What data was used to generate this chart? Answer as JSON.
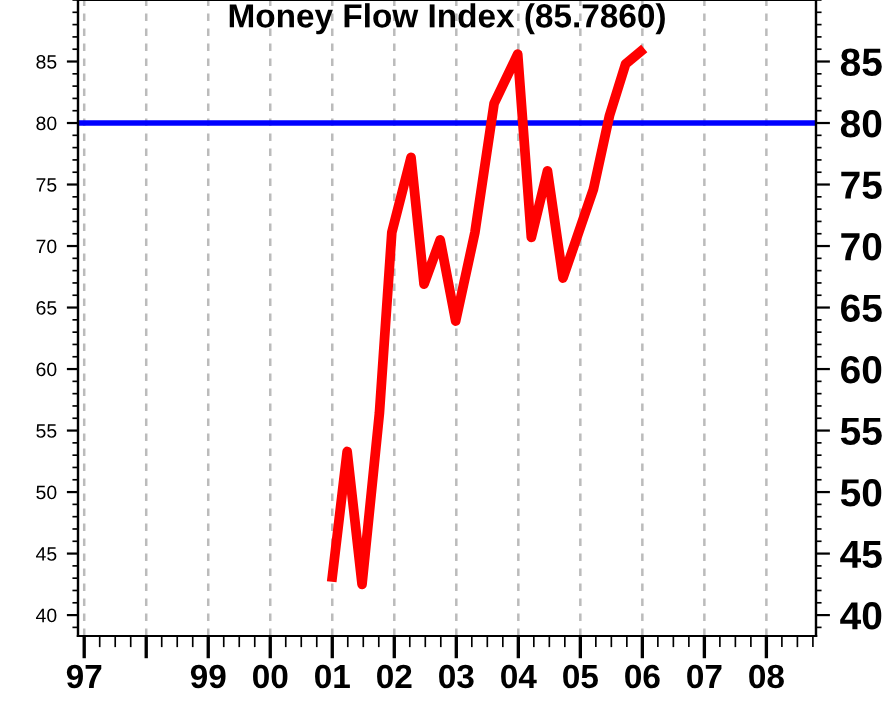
{
  "chart_data": {
    "type": "line",
    "title": "Money Flow Index (85.7860)",
    "series": [
      {
        "color": "#ff0000",
        "x": [
          2001.0,
          2001.24,
          2001.48,
          2001.76,
          2001.96,
          2002.27,
          2002.48,
          2002.74,
          2002.99,
          2003.3,
          2003.61,
          2003.99,
          2004.21,
          2004.47,
          2004.72,
          2005.21,
          2005.47,
          2005.73,
          2005.97
        ],
        "values": [
          43.1,
          53.3,
          42.5,
          56.4,
          71.1,
          77.2,
          66.9,
          70.5,
          63.9,
          71.1,
          81.6,
          85.6,
          70.7,
          76.1,
          67.4,
          74.6,
          80.6,
          84.8,
          85.8
        ]
      }
    ],
    "xlim": [
      1996.9,
      2008.8
    ],
    "xticks": [
      {
        "value": 1997,
        "label": "97"
      },
      {
        "value": 1998,
        "label": null
      },
      {
        "value": 1999,
        "label": "99"
      },
      {
        "value": 2000,
        "label": "00"
      },
      {
        "value": 2001,
        "label": "01"
      },
      {
        "value": 2002,
        "label": "02"
      },
      {
        "value": 2003,
        "label": "03"
      },
      {
        "value": 2004,
        "label": "04"
      },
      {
        "value": 2005,
        "label": "05"
      },
      {
        "value": 2006,
        "label": "06"
      },
      {
        "value": 2007,
        "label": "07"
      },
      {
        "value": 2008,
        "label": "08"
      }
    ],
    "ylim": [
      38.3,
      90
    ],
    "yticks": [
      40,
      45,
      50,
      55,
      60,
      65,
      70,
      75,
      80,
      85
    ],
    "y2lim": [
      38.3,
      90
    ],
    "y2ticks": [
      40,
      45,
      50,
      55,
      60,
      65,
      70,
      75,
      80,
      85
    ],
    "ref_lines": [
      {
        "axis": "y",
        "value": 80,
        "color": "#0000ff"
      }
    ],
    "grid": "x",
    "marker": "none",
    "line_style": "solid"
  }
}
